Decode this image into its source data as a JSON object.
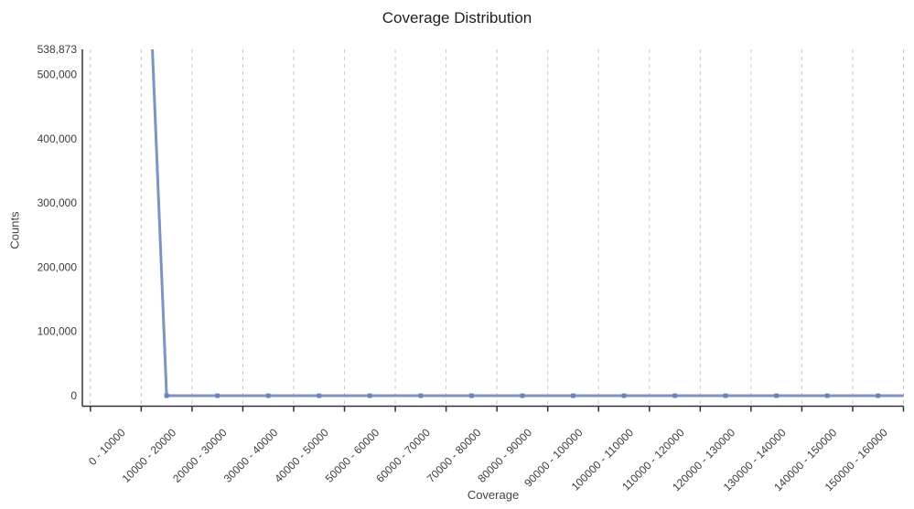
{
  "title": "Coverage Distribution",
  "chart_data": {
    "type": "line",
    "title": "Coverage Distribution",
    "xlabel": "Coverage",
    "ylabel": "Counts",
    "categories": [
      "0 - 10000",
      "10000 - 20000",
      "20000 - 30000",
      "30000 - 40000",
      "40000 - 50000",
      "50000 - 60000",
      "60000 - 70000",
      "70000 - 80000",
      "80000 - 90000",
      "90000 - 100000",
      "100000 - 110000",
      "110000 - 120000",
      "120000 - 130000",
      "130000 - 140000",
      "140000 - 150000",
      "150000 - 160000"
    ],
    "series": [
      {
        "name": "Counts",
        "values": [
          538873,
          0,
          0,
          0,
          0,
          0,
          0,
          0,
          0,
          0,
          0,
          0,
          0,
          0,
          0,
          0
        ]
      }
    ],
    "yticks": [
      {
        "label": "0",
        "value": 0
      },
      {
        "label": "100,000",
        "value": 100000
      },
      {
        "label": "200,000",
        "value": 200000
      },
      {
        "label": "300,000",
        "value": 300000
      },
      {
        "label": "400,000",
        "value": 400000
      },
      {
        "label": "500,000",
        "value": 500000
      },
      {
        "label": "538,873",
        "value": 538873
      }
    ],
    "ylim": [
      0,
      538873
    ],
    "grid": "vertical-dashed",
    "legend": "none",
    "colors": {
      "line": "#7b93c9",
      "marker": "#6583c0",
      "gridline": "#c9c9c9",
      "axis": "#333333",
      "title_text": "#212121",
      "tick_text": "#3c3c3c"
    }
  }
}
